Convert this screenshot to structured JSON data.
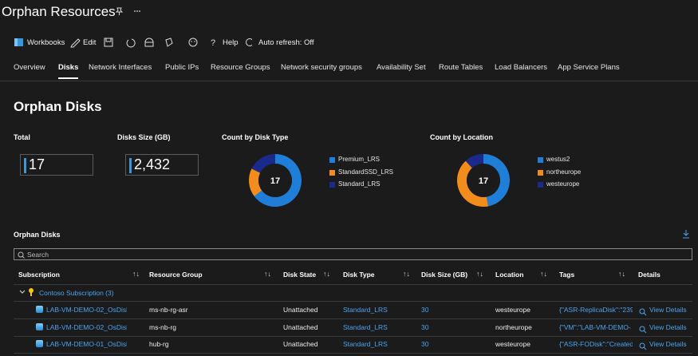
{
  "header": {
    "title": "Orphan Resources"
  },
  "toolbar": {
    "workbooks": "Workbooks",
    "edit": "Edit",
    "help": "Help",
    "auto_refresh": "Auto refresh: Off"
  },
  "tabs": [
    "Overview",
    "Disks",
    "Network Interfaces",
    "Public IPs",
    "Resource Groups",
    "Network security groups",
    "Availability Set",
    "Route Tables",
    "Load Balancers",
    "App Service Plans"
  ],
  "section_title": "Orphan Disks",
  "tiles": [
    {
      "label": "Total",
      "value": "17"
    },
    {
      "label": "Disks Size (GB)",
      "value": "2,432"
    }
  ],
  "donuts": [
    {
      "title": "Count by Disk Type",
      "total": 17,
      "items": [
        {
          "name": "Premium_LRS",
          "color": "#1f7fd8",
          "value": 11
        },
        {
          "name": "StandardSSD_LRS",
          "color": "#f28c1c",
          "value": 3
        },
        {
          "name": "Standard_LRS",
          "color": "#1a2a8c",
          "value": 3
        }
      ]
    },
    {
      "title": "Count by Location",
      "total": 17,
      "items": [
        {
          "name": "westus2",
          "color": "#1f7fd8",
          "value": 8
        },
        {
          "name": "northeurope",
          "color": "#f28c1c",
          "value": 7
        },
        {
          "name": "westeurope",
          "color": "#1a2a8c",
          "value": 2
        }
      ]
    }
  ],
  "table": {
    "title": "Orphan Disks",
    "search_placeholder": "Search",
    "columns": [
      "Subscription",
      "Resource Group",
      "Disk State",
      "Disk Type",
      "Disk Size (GB)",
      "Location",
      "Tags",
      "Details"
    ],
    "group": "Contoso Subscription (3)",
    "rows": [
      [
        "LAB-VM-DEMO-02_OsDisk_1_54",
        "ms-nb-rg-asr",
        "Unattached",
        "Standard_LRS",
        "30",
        "westeurope",
        "{\"ASR-ReplicaDisk\":\"239",
        "View Details"
      ],
      [
        "LAB-VM-DEMO-02_OsDisk_1_54",
        "ms-nb-rg",
        "Unattached",
        "Standard_LRS",
        "30",
        "northeurope",
        "{\"VM\":\"LAB-VM-DEMO-",
        "View Details"
      ],
      [
        "LAB-VM-DEMO-01_OsDisk_1_ae",
        "hub-rg",
        "Unattached",
        "Standard_LRS",
        "30",
        "westeurope",
        "{\"ASR-FODisk\":\"Created",
        "View Details"
      ]
    ]
  }
}
